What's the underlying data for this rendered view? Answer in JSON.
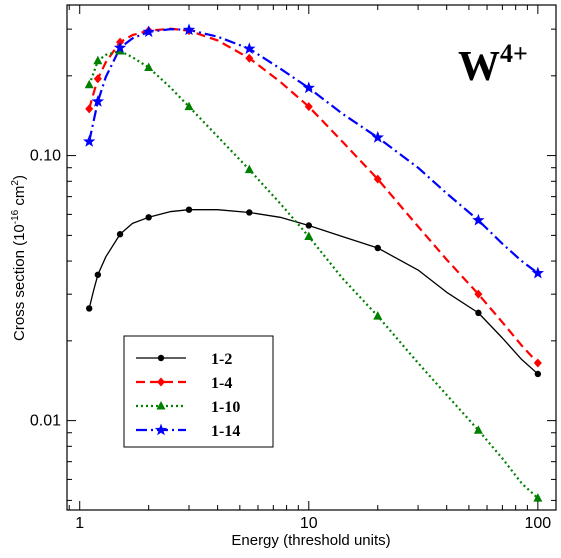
{
  "chart_data": {
    "type": "line",
    "title": "",
    "annotation": {
      "base": "W",
      "superscript": "4+"
    },
    "xlabel": "Energy (threshold units)",
    "ylabel": {
      "prefix": "Cross section (10",
      "exp": "-16",
      "mid": " cm",
      "sup2": "2",
      "suffix": ")"
    },
    "xscale": "log",
    "yscale": "log",
    "xlim": [
      0.88,
      120
    ],
    "ylim": [
      0.0046,
      0.37
    ],
    "x_ticks": [
      {
        "value": 1,
        "label": "1"
      },
      {
        "value": 10,
        "label": "10"
      },
      {
        "value": 100,
        "label": "100"
      }
    ],
    "y_ticks": [
      {
        "value": 0.01,
        "label": "0.01"
      },
      {
        "value": 0.1,
        "label": "0.10"
      }
    ],
    "grid": false,
    "legend_position": "lower-left",
    "series": [
      {
        "name": "1-2",
        "color": "#000000",
        "dash": "solid",
        "marker": "circle",
        "curve": [
          [
            1.1,
            0.0265
          ],
          [
            1.15,
            0.031
          ],
          [
            1.2,
            0.0355
          ],
          [
            1.3,
            0.0415
          ],
          [
            1.5,
            0.0505
          ],
          [
            1.7,
            0.0555
          ],
          [
            2.0,
            0.0585
          ],
          [
            2.5,
            0.0615
          ],
          [
            3.0,
            0.0625
          ],
          [
            4.0,
            0.0625
          ],
          [
            5.5,
            0.061
          ],
          [
            7.5,
            0.0585
          ],
          [
            10.0,
            0.0545
          ],
          [
            14.0,
            0.0495
          ],
          [
            20.0,
            0.0448
          ],
          [
            30.0,
            0.037
          ],
          [
            40.0,
            0.0305
          ],
          [
            55.0,
            0.0255
          ],
          [
            70.0,
            0.0205
          ],
          [
            85.0,
            0.017
          ],
          [
            100.0,
            0.015
          ]
        ],
        "marker_points": [
          [
            1.1,
            0.0265
          ],
          [
            1.2,
            0.0355
          ],
          [
            1.5,
            0.0505
          ],
          [
            2.0,
            0.0585
          ],
          [
            3.0,
            0.0625
          ],
          [
            5.5,
            0.061
          ],
          [
            10.0,
            0.0545
          ],
          [
            20.0,
            0.0448
          ],
          [
            55.0,
            0.0255
          ],
          [
            100.0,
            0.015
          ]
        ]
      },
      {
        "name": "1-4",
        "color": "#ff0000",
        "dash": "dash",
        "marker": "diamond",
        "curve": [
          [
            1.1,
            0.15
          ],
          [
            1.15,
            0.172
          ],
          [
            1.2,
            0.195
          ],
          [
            1.3,
            0.225
          ],
          [
            1.5,
            0.268
          ],
          [
            1.7,
            0.285
          ],
          [
            2.0,
            0.296
          ],
          [
            2.5,
            0.301
          ],
          [
            3.0,
            0.296
          ],
          [
            4.0,
            0.272
          ],
          [
            5.5,
            0.233
          ],
          [
            7.5,
            0.19
          ],
          [
            10.0,
            0.153
          ],
          [
            14.0,
            0.113
          ],
          [
            20.0,
            0.0815
          ],
          [
            30.0,
            0.054
          ],
          [
            40.0,
            0.0405
          ],
          [
            55.0,
            0.03
          ],
          [
            70.0,
            0.0235
          ],
          [
            85.0,
            0.0192
          ],
          [
            100.0,
            0.0165
          ]
        ],
        "marker_points": [
          [
            1.1,
            0.15
          ],
          [
            1.2,
            0.195
          ],
          [
            1.5,
            0.268
          ],
          [
            2.0,
            0.296
          ],
          [
            3.0,
            0.296
          ],
          [
            5.5,
            0.233
          ],
          [
            10.0,
            0.153
          ],
          [
            20.0,
            0.0815
          ],
          [
            55.0,
            0.03
          ],
          [
            100.0,
            0.0165
          ]
        ]
      },
      {
        "name": "1-10",
        "color": "#008000",
        "dash": "dot",
        "marker": "triangle",
        "curve": [
          [
            1.1,
            0.185
          ],
          [
            1.15,
            0.205
          ],
          [
            1.2,
            0.228
          ],
          [
            1.3,
            0.24
          ],
          [
            1.5,
            0.248
          ],
          [
            1.7,
            0.235
          ],
          [
            2.0,
            0.215
          ],
          [
            2.5,
            0.18
          ],
          [
            3.0,
            0.153
          ],
          [
            4.0,
            0.118
          ],
          [
            5.5,
            0.0885
          ],
          [
            7.5,
            0.066
          ],
          [
            10.0,
            0.0495
          ],
          [
            14.0,
            0.0345
          ],
          [
            20.0,
            0.0248
          ],
          [
            30.0,
            0.0165
          ],
          [
            40.0,
            0.0125
          ],
          [
            55.0,
            0.0092
          ],
          [
            70.0,
            0.0072
          ],
          [
            85.0,
            0.0058
          ],
          [
            100.0,
            0.0051
          ]
        ],
        "marker_points": [
          [
            1.1,
            0.185
          ],
          [
            1.2,
            0.228
          ],
          [
            1.5,
            0.248
          ],
          [
            2.0,
            0.215
          ],
          [
            3.0,
            0.153
          ],
          [
            5.5,
            0.0885
          ],
          [
            10.0,
            0.0495
          ],
          [
            20.0,
            0.0248
          ],
          [
            55.0,
            0.0092
          ],
          [
            100.0,
            0.0051
          ]
        ]
      },
      {
        "name": "1-14",
        "color": "#0000ff",
        "dash": "dashdot",
        "marker": "star",
        "curve": [
          [
            1.1,
            0.113
          ],
          [
            1.15,
            0.135
          ],
          [
            1.2,
            0.16
          ],
          [
            1.3,
            0.198
          ],
          [
            1.5,
            0.255
          ],
          [
            1.7,
            0.277
          ],
          [
            2.0,
            0.293
          ],
          [
            2.5,
            0.3
          ],
          [
            3.0,
            0.298
          ],
          [
            4.0,
            0.281
          ],
          [
            5.5,
            0.253
          ],
          [
            7.5,
            0.213
          ],
          [
            10.0,
            0.18
          ],
          [
            14.0,
            0.144
          ],
          [
            20.0,
            0.117
          ],
          [
            30.0,
            0.09
          ],
          [
            40.0,
            0.072
          ],
          [
            55.0,
            0.057
          ],
          [
            70.0,
            0.0465
          ],
          [
            85.0,
            0.04
          ],
          [
            100.0,
            0.036
          ]
        ],
        "marker_points": [
          [
            1.1,
            0.113
          ],
          [
            1.2,
            0.16
          ],
          [
            1.5,
            0.255
          ],
          [
            2.0,
            0.293
          ],
          [
            3.0,
            0.298
          ],
          [
            5.5,
            0.253
          ],
          [
            10.0,
            0.18
          ],
          [
            20.0,
            0.117
          ],
          [
            55.0,
            0.057
          ],
          [
            100.0,
            0.036
          ]
        ]
      }
    ]
  }
}
